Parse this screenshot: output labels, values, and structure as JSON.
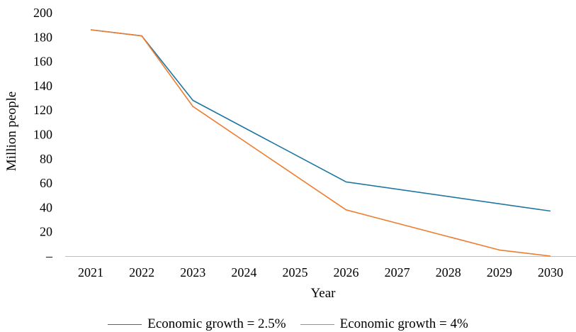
{
  "chart_data": {
    "type": "line",
    "xlabel": "Year",
    "ylabel": "Million people",
    "x": [
      "2021",
      "2022",
      "2023",
      "2024",
      "2025",
      "2026",
      "2027",
      "2028",
      "2029",
      "2030"
    ],
    "ylim": [
      0,
      200
    ],
    "yticks": [
      0,
      20,
      40,
      60,
      80,
      100,
      120,
      140,
      160,
      180,
      200
    ],
    "ytick_labels": [
      "–",
      "20",
      "40",
      "60",
      "80",
      "100",
      "120",
      "140",
      "160",
      "180",
      "200"
    ],
    "grid": false,
    "legend_position": "bottom",
    "series": [
      {
        "name": "Economic growth = 2.5%",
        "color": "#1f77a0",
        "points": [
          [
            0,
            186
          ],
          [
            1,
            181
          ],
          [
            2,
            128
          ],
          [
            5,
            61
          ],
          [
            9,
            37
          ]
        ]
      },
      {
        "name": "Economic growth = 4%",
        "color": "#ed7d31",
        "points": [
          [
            0,
            186
          ],
          [
            1,
            181
          ],
          [
            2,
            123
          ],
          [
            5,
            38
          ],
          [
            8,
            5
          ],
          [
            9,
            0
          ]
        ]
      }
    ]
  }
}
